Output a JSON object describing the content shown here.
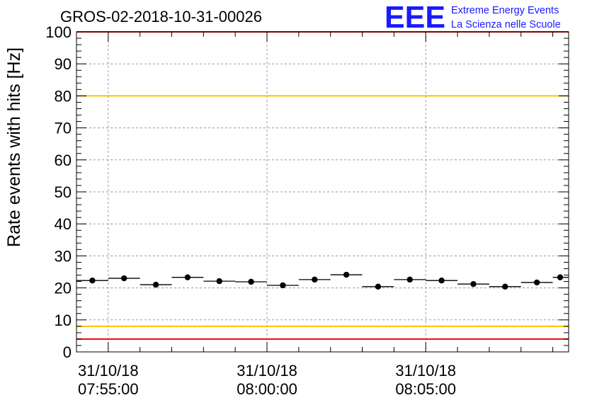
{
  "header": {
    "title": "GROS-02-2018-10-31-00026",
    "logo_mark": "EEE",
    "logo_line1": "Extreme Energy Events",
    "logo_line2": "La Scienza nelle Scuole"
  },
  "colors": {
    "logo": "#1a1aff",
    "red_line": "#ff0000",
    "yellow_line": "#f5c400",
    "grid": "#9a9a9a",
    "marker": "#000000"
  },
  "chart_data": {
    "type": "scatter",
    "title": "GROS-02-2018-10-31-00026",
    "xlabel": "",
    "ylabel": "Rate events with hits [Hz]",
    "ylim": [
      0,
      100
    ],
    "xlim": [
      "07:54:00",
      "08:09:30"
    ],
    "y_ticks": [
      0,
      10,
      20,
      30,
      40,
      50,
      60,
      70,
      80,
      90,
      100
    ],
    "x_ticks": [
      {
        "time": "07:55:00",
        "date": "31/10/18",
        "label": "07:55:00"
      },
      {
        "time": "08:00:00",
        "date": "31/10/18",
        "label": "08:00:00"
      },
      {
        "time": "08:05:00",
        "date": "31/10/18",
        "label": "08:05:00"
      }
    ],
    "grid": true,
    "bin_width_seconds": 60,
    "reference_lines": [
      {
        "y": 4,
        "color": "#ff0000"
      },
      {
        "y": 8,
        "color": "#f5c400"
      },
      {
        "y": 80,
        "color": "#f5c400"
      },
      {
        "y": 100,
        "color": "#ff0000"
      }
    ],
    "points": [
      {
        "x": "07:54:30",
        "y": 22.3
      },
      {
        "x": "07:55:30",
        "y": 23.0
      },
      {
        "x": "07:56:30",
        "y": 21.0
      },
      {
        "x": "07:57:30",
        "y": 23.3
      },
      {
        "x": "07:58:30",
        "y": 22.1
      },
      {
        "x": "07:59:30",
        "y": 21.9
      },
      {
        "x": "08:00:30",
        "y": 20.8
      },
      {
        "x": "08:01:30",
        "y": 22.6
      },
      {
        "x": "08:02:30",
        "y": 24.1
      },
      {
        "x": "08:03:30",
        "y": 20.4
      },
      {
        "x": "08:04:30",
        "y": 22.6
      },
      {
        "x": "08:05:30",
        "y": 22.3
      },
      {
        "x": "08:06:30",
        "y": 21.2
      },
      {
        "x": "08:07:30",
        "y": 20.4
      },
      {
        "x": "08:08:30",
        "y": 21.7
      },
      {
        "x": "08:09:30",
        "y": 23.3
      }
    ]
  }
}
